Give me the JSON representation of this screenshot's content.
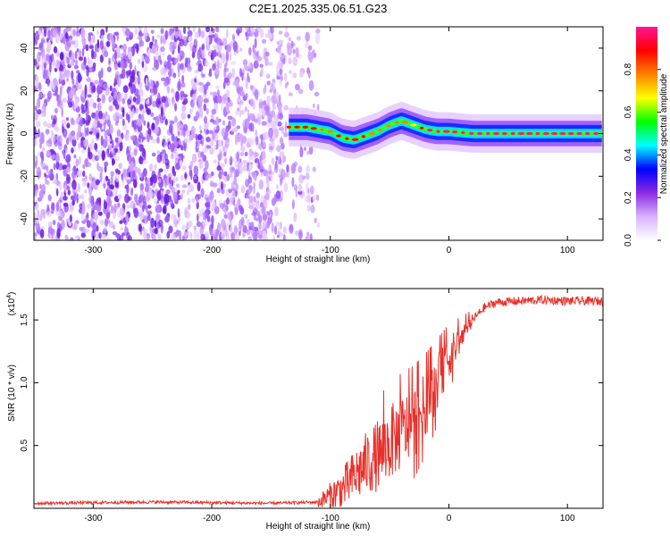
{
  "title": "C2E1.2025.335.06.51.G23",
  "chart_data": [
    {
      "type": "heatmap",
      "xlabel": "Height of straight line (km)",
      "ylabel": "Frequency (Hz)",
      "xlim": [
        -350,
        130
      ],
      "ylim": [
        -50,
        50
      ],
      "x_ticks": [
        -300,
        -200,
        -100,
        0,
        100
      ],
      "x_tick_labels": [
        "-300",
        "-200",
        "-100",
        "0",
        "100"
      ],
      "y_ticks": [
        -40,
        -20,
        0,
        20,
        40
      ],
      "y_tick_labels": [
        "-40",
        "-20",
        "0",
        "20",
        "40"
      ],
      "colorbar": {
        "label": "Normalized spectral amplitude",
        "range": [
          0,
          1
        ],
        "ticks": [
          0,
          0.2,
          0.4,
          0.6,
          0.8
        ],
        "tick_labels": [
          "0.0",
          "0.2",
          "0.4",
          "0.6",
          "0.8"
        ],
        "colors": [
          "#ffffff",
          "#d9b3ff",
          "#8a2be2",
          "#0000ff",
          "#00ffff",
          "#00ff00",
          "#ffff00",
          "#ff8000",
          "#ff0000",
          "#ff1493"
        ]
      },
      "noise_region_x": [
        -350,
        -110
      ],
      "ridge": {
        "x": [
          -135,
          -120,
          -110,
          -100,
          -90,
          -80,
          -70,
          -60,
          -50,
          -40,
          -30,
          -20,
          -10,
          0,
          10,
          20,
          40,
          60,
          80,
          100,
          130
        ],
        "freq": [
          3,
          3,
          2,
          1,
          -2,
          -3,
          -1,
          1,
          4,
          6,
          4,
          2,
          1,
          1,
          0.5,
          0,
          0,
          0,
          0,
          0,
          0
        ]
      }
    },
    {
      "type": "line",
      "xlabel": "Height of straight line (km)",
      "ylabel": "SNR (10 * v/v)",
      "y_scale_label": "(x10",
      "y_scale_exponent": "4",
      "y_scale_close": ")",
      "xlim": [
        -350,
        130
      ],
      "ylim": [
        0,
        1.75
      ],
      "x_ticks": [
        -300,
        -200,
        -100,
        0,
        100
      ],
      "x_tick_labels": [
        "-300",
        "-200",
        "-100",
        "0",
        "100"
      ],
      "y_ticks": [
        0.5,
        1.0,
        1.5
      ],
      "y_tick_labels": [
        "0.5",
        "1.0",
        "1.5"
      ],
      "color": "#e8302a",
      "envelope": {
        "x": [
          -350,
          -250,
          -150,
          -110,
          -100,
          -90,
          -80,
          -70,
          -60,
          -50,
          -40,
          -30,
          -20,
          -10,
          0,
          10,
          20,
          30,
          40,
          60,
          80,
          100,
          130
        ],
        "y": [
          0.04,
          0.05,
          0.04,
          0.05,
          0.1,
          0.15,
          0.25,
          0.35,
          0.42,
          0.52,
          0.6,
          0.68,
          0.82,
          1.0,
          1.2,
          1.35,
          1.5,
          1.6,
          1.64,
          1.65,
          1.66,
          1.65,
          1.65
        ]
      }
    }
  ]
}
